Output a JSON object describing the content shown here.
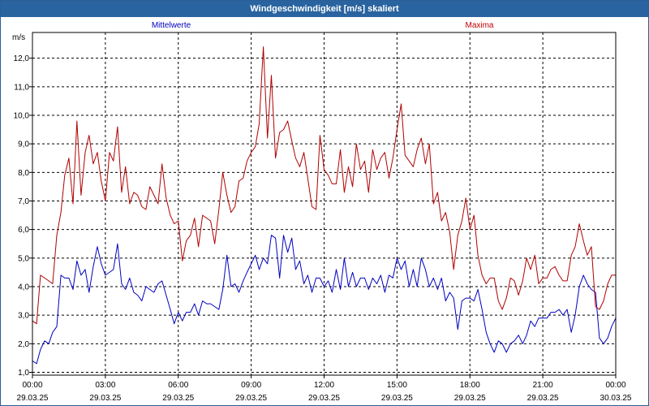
{
  "window": {
    "title": "Windgeschwindigkeit [m/s] skaliert"
  },
  "chart_data": {
    "type": "line",
    "ylabel": "m/s",
    "ylim": [
      0.9,
      12.9
    ],
    "yticks": [
      "1,0",
      "2,0",
      "3,0",
      "4,0",
      "5,0",
      "6,0",
      "7,0",
      "8,0",
      "9,0",
      "10,0",
      "11,0",
      "12,0"
    ],
    "ytick_values": [
      1,
      2,
      3,
      4,
      5,
      6,
      7,
      8,
      9,
      10,
      11,
      12
    ],
    "xlim": [
      0,
      24
    ],
    "xticks": [
      {
        "time": "00:00",
        "date": "29.03.25",
        "hour": 0
      },
      {
        "time": "03:00",
        "date": "29.03.25",
        "hour": 3
      },
      {
        "time": "06:00",
        "date": "29.03.25",
        "hour": 6
      },
      {
        "time": "09:00",
        "date": "29.03.25",
        "hour": 9
      },
      {
        "time": "12:00",
        "date": "29.03.25",
        "hour": 12
      },
      {
        "time": "15:00",
        "date": "29.03.25",
        "hour": 15
      },
      {
        "time": "18:00",
        "date": "29.03.25",
        "hour": 18
      },
      {
        "time": "21:00",
        "date": "29.03.25",
        "hour": 21
      },
      {
        "time": "00:00",
        "date": "30.03.25",
        "hour": 24
      }
    ],
    "grid": true,
    "series": [
      {
        "name": "Mittelwerte",
        "color": "#0000c0",
        "points": [
          [
            0.0,
            1.4
          ],
          [
            0.17,
            1.3
          ],
          [
            0.33,
            1.8
          ],
          [
            0.5,
            2.1
          ],
          [
            0.67,
            2.0
          ],
          [
            0.83,
            2.4
          ],
          [
            1.0,
            2.6
          ],
          [
            1.17,
            4.4
          ],
          [
            1.33,
            4.3
          ],
          [
            1.5,
            4.3
          ],
          [
            1.67,
            3.9
          ],
          [
            1.83,
            4.9
          ],
          [
            2.0,
            4.4
          ],
          [
            2.17,
            4.6
          ],
          [
            2.33,
            3.8
          ],
          [
            2.5,
            4.7
          ],
          [
            2.67,
            5.4
          ],
          [
            2.83,
            4.8
          ],
          [
            3.0,
            4.4
          ],
          [
            3.17,
            4.5
          ],
          [
            3.33,
            4.6
          ],
          [
            3.5,
            5.5
          ],
          [
            3.67,
            4.1
          ],
          [
            3.83,
            3.9
          ],
          [
            4.0,
            4.3
          ],
          [
            4.17,
            3.8
          ],
          [
            4.33,
            3.7
          ],
          [
            4.5,
            3.5
          ],
          [
            4.67,
            4.0
          ],
          [
            4.83,
            3.9
          ],
          [
            5.0,
            3.8
          ],
          [
            5.17,
            4.1
          ],
          [
            5.33,
            4.2
          ],
          [
            5.5,
            3.7
          ],
          [
            5.67,
            3.2
          ],
          [
            5.83,
            2.7
          ],
          [
            6.0,
            3.1
          ],
          [
            6.17,
            2.8
          ],
          [
            6.33,
            3.1
          ],
          [
            6.5,
            3.1
          ],
          [
            6.67,
            3.4
          ],
          [
            6.83,
            3.0
          ],
          [
            7.0,
            3.5
          ],
          [
            7.17,
            3.4
          ],
          [
            7.33,
            3.4
          ],
          [
            7.5,
            3.3
          ],
          [
            7.67,
            3.2
          ],
          [
            7.83,
            3.9
          ],
          [
            8.0,
            5.1
          ],
          [
            8.17,
            4.0
          ],
          [
            8.33,
            4.1
          ],
          [
            8.5,
            3.8
          ],
          [
            8.67,
            4.2
          ],
          [
            8.83,
            4.5
          ],
          [
            9.0,
            4.8
          ],
          [
            9.17,
            5.1
          ],
          [
            9.33,
            4.6
          ],
          [
            9.5,
            5.0
          ],
          [
            9.67,
            4.8
          ],
          [
            9.83,
            5.8
          ],
          [
            10.0,
            5.7
          ],
          [
            10.17,
            4.3
          ],
          [
            10.33,
            5.8
          ],
          [
            10.5,
            5.2
          ],
          [
            10.67,
            5.7
          ],
          [
            10.83,
            4.6
          ],
          [
            11.0,
            4.9
          ],
          [
            11.17,
            4.1
          ],
          [
            11.33,
            4.4
          ],
          [
            11.5,
            3.8
          ],
          [
            11.67,
            4.3
          ],
          [
            11.83,
            4.3
          ],
          [
            12.0,
            4.0
          ],
          [
            12.17,
            4.2
          ],
          [
            12.33,
            3.8
          ],
          [
            12.5,
            4.6
          ],
          [
            12.67,
            3.9
          ],
          [
            12.83,
            5.0
          ],
          [
            13.0,
            4.0
          ],
          [
            13.17,
            4.5
          ],
          [
            13.33,
            4.0
          ],
          [
            13.5,
            4.3
          ],
          [
            13.67,
            4.3
          ],
          [
            13.83,
            3.9
          ],
          [
            14.0,
            4.3
          ],
          [
            14.17,
            4.1
          ],
          [
            14.33,
            4.4
          ],
          [
            14.5,
            3.8
          ],
          [
            14.67,
            4.4
          ],
          [
            14.83,
            4.3
          ],
          [
            15.0,
            5.0
          ],
          [
            15.17,
            4.6
          ],
          [
            15.33,
            4.9
          ],
          [
            15.5,
            4.0
          ],
          [
            15.67,
            4.6
          ],
          [
            15.83,
            4.0
          ],
          [
            16.0,
            5.0
          ],
          [
            16.17,
            4.6
          ],
          [
            16.33,
            4.0
          ],
          [
            16.5,
            4.3
          ],
          [
            16.67,
            3.9
          ],
          [
            16.83,
            4.3
          ],
          [
            17.0,
            3.5
          ],
          [
            17.17,
            3.8
          ],
          [
            17.33,
            3.6
          ],
          [
            17.5,
            2.5
          ],
          [
            17.67,
            3.5
          ],
          [
            17.83,
            3.6
          ],
          [
            18.0,
            3.6
          ],
          [
            18.17,
            3.5
          ],
          [
            18.33,
            3.9
          ],
          [
            18.5,
            3.2
          ],
          [
            18.67,
            2.4
          ],
          [
            18.83,
            2.0
          ],
          [
            19.0,
            1.7
          ],
          [
            19.17,
            2.1
          ],
          [
            19.33,
            2.0
          ],
          [
            19.5,
            1.7
          ],
          [
            19.67,
            2.0
          ],
          [
            19.83,
            2.1
          ],
          [
            20.0,
            2.3
          ],
          [
            20.17,
            2.0
          ],
          [
            20.33,
            2.3
          ],
          [
            20.5,
            2.8
          ],
          [
            20.67,
            2.6
          ],
          [
            20.83,
            2.9
          ],
          [
            21.0,
            2.9
          ],
          [
            21.17,
            2.9
          ],
          [
            21.33,
            3.1
          ],
          [
            21.5,
            3.1
          ],
          [
            21.67,
            3.2
          ],
          [
            21.83,
            3.0
          ],
          [
            22.0,
            3.2
          ],
          [
            22.17,
            2.4
          ],
          [
            22.33,
            3.0
          ],
          [
            22.5,
            4.0
          ],
          [
            22.67,
            4.4
          ],
          [
            22.83,
            4.1
          ],
          [
            23.0,
            3.9
          ],
          [
            23.17,
            3.8
          ],
          [
            23.33,
            2.2
          ],
          [
            23.5,
            2.0
          ],
          [
            23.67,
            2.2
          ],
          [
            23.83,
            2.6
          ],
          [
            24.0,
            2.9
          ]
        ]
      },
      {
        "name": "Maxima",
        "color": "#b00000",
        "points": [
          [
            0.0,
            2.8
          ],
          [
            0.17,
            2.7
          ],
          [
            0.33,
            4.4
          ],
          [
            0.5,
            4.3
          ],
          [
            0.67,
            4.2
          ],
          [
            0.83,
            4.1
          ],
          [
            1.0,
            5.8
          ],
          [
            1.17,
            6.6
          ],
          [
            1.33,
            7.9
          ],
          [
            1.5,
            8.5
          ],
          [
            1.67,
            6.9
          ],
          [
            1.83,
            9.8
          ],
          [
            2.0,
            7.2
          ],
          [
            2.17,
            8.7
          ],
          [
            2.33,
            9.3
          ],
          [
            2.5,
            8.3
          ],
          [
            2.67,
            8.7
          ],
          [
            2.83,
            7.7
          ],
          [
            3.0,
            7.0
          ],
          [
            3.17,
            8.7
          ],
          [
            3.33,
            8.4
          ],
          [
            3.5,
            9.6
          ],
          [
            3.67,
            7.3
          ],
          [
            3.83,
            8.2
          ],
          [
            4.0,
            6.9
          ],
          [
            4.17,
            7.3
          ],
          [
            4.33,
            7.2
          ],
          [
            4.5,
            6.8
          ],
          [
            4.67,
            6.7
          ],
          [
            4.83,
            7.5
          ],
          [
            5.0,
            7.2
          ],
          [
            5.17,
            6.9
          ],
          [
            5.33,
            8.3
          ],
          [
            5.5,
            7.1
          ],
          [
            5.67,
            6.5
          ],
          [
            5.83,
            6.2
          ],
          [
            6.0,
            6.3
          ],
          [
            6.17,
            4.9
          ],
          [
            6.33,
            5.6
          ],
          [
            6.5,
            5.8
          ],
          [
            6.67,
            6.4
          ],
          [
            6.83,
            5.4
          ],
          [
            7.0,
            6.5
          ],
          [
            7.17,
            6.4
          ],
          [
            7.33,
            6.3
          ],
          [
            7.5,
            5.5
          ],
          [
            7.67,
            6.7
          ],
          [
            7.83,
            8.0
          ],
          [
            8.0,
            7.2
          ],
          [
            8.17,
            6.6
          ],
          [
            8.33,
            6.8
          ],
          [
            8.5,
            7.7
          ],
          [
            8.67,
            7.8
          ],
          [
            8.83,
            8.4
          ],
          [
            9.0,
            8.7
          ],
          [
            9.17,
            8.9
          ],
          [
            9.33,
            9.7
          ],
          [
            9.5,
            12.4
          ],
          [
            9.67,
            9.2
          ],
          [
            9.83,
            11.4
          ],
          [
            10.0,
            8.5
          ],
          [
            10.17,
            9.4
          ],
          [
            10.33,
            9.5
          ],
          [
            10.5,
            9.8
          ],
          [
            10.67,
            9.1
          ],
          [
            10.83,
            8.5
          ],
          [
            11.0,
            8.2
          ],
          [
            11.17,
            8.7
          ],
          [
            11.33,
            7.8
          ],
          [
            11.5,
            6.8
          ],
          [
            11.67,
            6.7
          ],
          [
            11.83,
            9.3
          ],
          [
            12.0,
            8.1
          ],
          [
            12.17,
            7.9
          ],
          [
            12.33,
            7.6
          ],
          [
            12.5,
            7.6
          ],
          [
            12.67,
            8.8
          ],
          [
            12.83,
            7.3
          ],
          [
            13.0,
            8.2
          ],
          [
            13.17,
            7.5
          ],
          [
            13.33,
            9.0
          ],
          [
            13.5,
            8.1
          ],
          [
            13.67,
            8.4
          ],
          [
            13.83,
            7.3
          ],
          [
            14.0,
            8.8
          ],
          [
            14.17,
            8.1
          ],
          [
            14.33,
            8.5
          ],
          [
            14.5,
            8.7
          ],
          [
            14.67,
            7.8
          ],
          [
            14.83,
            8.5
          ],
          [
            15.0,
            9.5
          ],
          [
            15.17,
            10.4
          ],
          [
            15.33,
            8.6
          ],
          [
            15.5,
            8.4
          ],
          [
            15.67,
            8.2
          ],
          [
            15.83,
            8.8
          ],
          [
            16.0,
            9.2
          ],
          [
            16.17,
            8.3
          ],
          [
            16.33,
            9.0
          ],
          [
            16.5,
            6.9
          ],
          [
            16.67,
            7.3
          ],
          [
            16.83,
            6.3
          ],
          [
            17.0,
            6.6
          ],
          [
            17.17,
            5.9
          ],
          [
            17.33,
            4.6
          ],
          [
            17.5,
            5.8
          ],
          [
            17.67,
            6.3
          ],
          [
            17.83,
            7.1
          ],
          [
            18.0,
            6.0
          ],
          [
            18.17,
            6.5
          ],
          [
            18.33,
            5.1
          ],
          [
            18.5,
            4.4
          ],
          [
            18.67,
            4.1
          ],
          [
            18.83,
            4.3
          ],
          [
            19.0,
            4.3
          ],
          [
            19.17,
            3.5
          ],
          [
            19.33,
            3.2
          ],
          [
            19.5,
            3.6
          ],
          [
            19.67,
            4.3
          ],
          [
            19.83,
            4.2
          ],
          [
            20.0,
            3.7
          ],
          [
            20.17,
            4.2
          ],
          [
            20.33,
            5.0
          ],
          [
            20.5,
            4.6
          ],
          [
            20.67,
            5.1
          ],
          [
            20.83,
            4.1
          ],
          [
            21.0,
            4.3
          ],
          [
            21.17,
            4.3
          ],
          [
            21.33,
            4.6
          ],
          [
            21.5,
            4.7
          ],
          [
            21.67,
            4.4
          ],
          [
            21.83,
            4.2
          ],
          [
            22.0,
            4.2
          ],
          [
            22.17,
            5.1
          ],
          [
            22.33,
            5.4
          ],
          [
            22.5,
            6.2
          ],
          [
            22.67,
            5.6
          ],
          [
            22.83,
            5.1
          ],
          [
            23.0,
            5.4
          ],
          [
            23.17,
            3.3
          ],
          [
            23.33,
            3.2
          ],
          [
            23.5,
            3.5
          ],
          [
            23.67,
            4.1
          ],
          [
            23.83,
            4.4
          ],
          [
            24.0,
            4.4
          ]
        ]
      }
    ]
  }
}
